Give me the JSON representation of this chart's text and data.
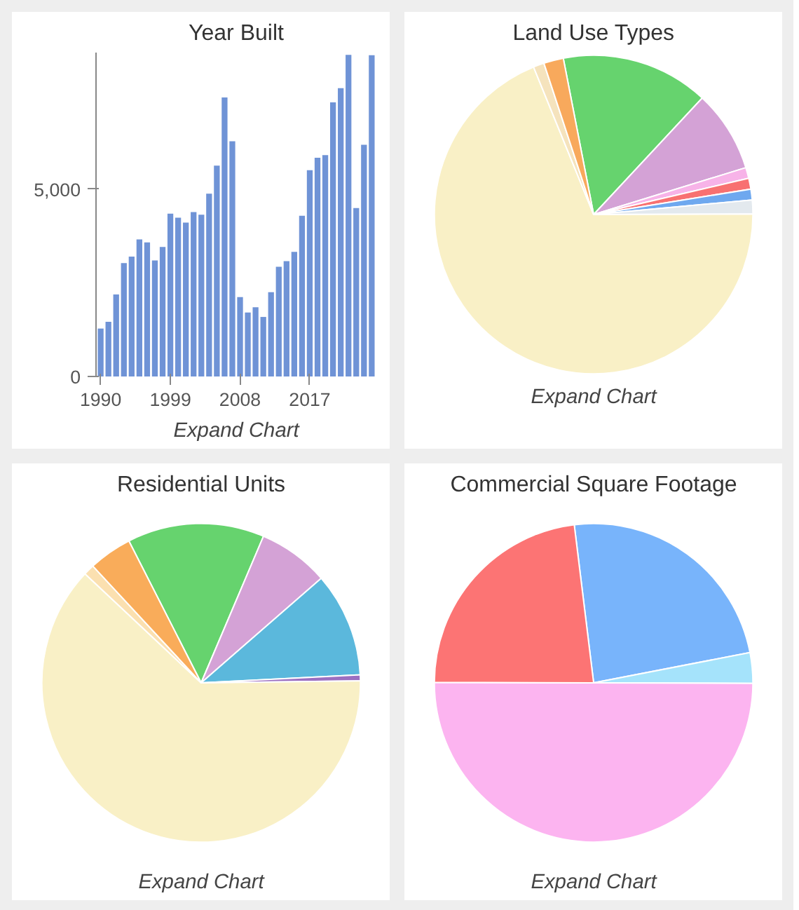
{
  "chart_data": [
    {
      "type": "bar",
      "title": "Year Built",
      "x": [
        1990,
        1991,
        1992,
        1993,
        1994,
        1995,
        1996,
        1997,
        1998,
        1999,
        2000,
        2001,
        2002,
        2003,
        2004,
        2005,
        2006,
        2007,
        2008,
        2009,
        2010,
        2011,
        2012,
        2013,
        2014,
        2015,
        2016,
        2017,
        2018,
        2019,
        2020,
        2021,
        2022,
        2023,
        2024,
        2025
      ],
      "values": [
        1280,
        1460,
        2190,
        3030,
        3200,
        3660,
        3580,
        3100,
        3460,
        4350,
        4240,
        4110,
        4390,
        4320,
        4880,
        5630,
        7450,
        6280,
        2120,
        1710,
        1850,
        1590,
        2250,
        2930,
        3080,
        3330,
        4290,
        5510,
        5840,
        5910,
        7320,
        7700,
        8590,
        4500,
        6190,
        8580
      ],
      "color": "#6f93d6",
      "xlim": [
        1989.4,
        2025.6
      ],
      "ylim": [
        0,
        8650
      ],
      "xticks": [
        1990,
        1999,
        2008,
        2017
      ],
      "yticks": [
        0,
        {
          "value": 5000,
          "label": "5,000"
        }
      ],
      "annotations": [
        "Expand Chart"
      ]
    },
    {
      "type": "pie",
      "title": "Land Use Types",
      "categories": [
        null,
        null,
        null,
        null,
        null,
        null,
        null,
        null,
        null
      ],
      "values": [
        15.0,
        8.3,
        1.1,
        1.1,
        1.1,
        1.4,
        68.9,
        1.1,
        2.0
      ],
      "colors": [
        "#66d36e",
        "#d4a2d6",
        "#f7b3e8",
        "#f87171",
        "#6ea8ef",
        "#e3e9ee",
        "#f9f0c6",
        "#f5e3bd",
        "#f8a95c"
      ],
      "annotations": [
        "Expand Chart"
      ]
    },
    {
      "type": "pie",
      "title": "Residential Units",
      "categories": [
        null,
        null,
        null,
        null,
        null,
        null,
        null
      ],
      "values": [
        13.9,
        7.2,
        10.6,
        0.6,
        62.2,
        1.1,
        4.4
      ],
      "colors": [
        "#66d36e",
        "#d4a2d6",
        "#5bb8dc",
        "#9b6fc1",
        "#f9f0c6",
        "#fbe0b0",
        "#f9ac5a"
      ],
      "annotations": [
        "Expand Chart"
      ]
    },
    {
      "type": "pie",
      "title": "Commercial Square Footage",
      "categories": [
        null,
        null,
        null,
        null
      ],
      "values": [
        23.9,
        3.1,
        50.0,
        23.0
      ],
      "colors": [
        "#78b4fb",
        "#a5e3fb",
        "#fcb4f0",
        "#fc7474"
      ],
      "annotations": [
        "Expand Chart"
      ]
    }
  ]
}
